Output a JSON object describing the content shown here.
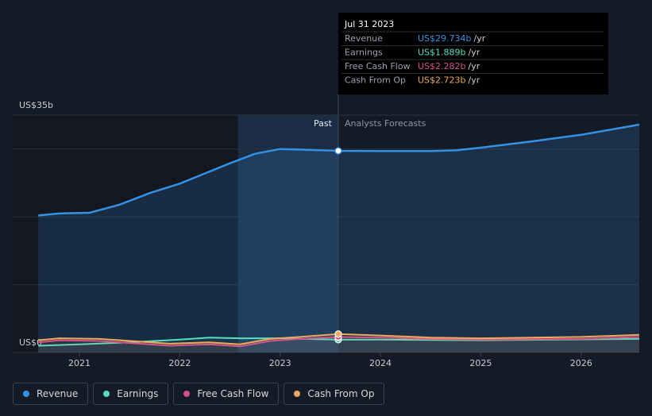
{
  "chart_data": {
    "type": "line",
    "y_axis_label_top": "US$35b",
    "ylim": [
      0,
      35
    ],
    "yticks": [
      {
        "value": 0,
        "label": "US$0"
      },
      {
        "value": 35,
        "label": "US$35b"
      }
    ],
    "ygrid": [
      10,
      20,
      30
    ],
    "xlim": [
      2020.335,
      2026.58
    ],
    "xticks": [
      2021,
      2022,
      2023,
      2024,
      2025,
      2026
    ],
    "forecast_start": 2023.58,
    "annotations": {
      "past": "Past",
      "forecast": "Analysts Forecasts"
    },
    "series": [
      {
        "name": "Revenue",
        "color": "#3591e3",
        "x": [
          2020.59,
          2020.8,
          2021.1,
          2021.4,
          2021.7,
          2022.0,
          2022.25,
          2022.5,
          2022.75,
          2023.0,
          2023.25,
          2023.58,
          2024.0,
          2024.5,
          2024.75,
          2025.0,
          2025.5,
          2026.0,
          2026.58
        ],
        "values": [
          20.2,
          20.5,
          20.6,
          21.8,
          23.5,
          24.9,
          26.4,
          27.9,
          29.3,
          30.0,
          29.9,
          29.734,
          29.7,
          29.7,
          29.8,
          30.2,
          31.1,
          32.1,
          33.6
        ]
      },
      {
        "name": "Earnings",
        "color": "#56e0c0",
        "x": [
          2020.59,
          2021.0,
          2021.5,
          2022.0,
          2022.3,
          2022.6,
          2023.0,
          2023.58,
          2024.0,
          2025.0,
          2026.58
        ],
        "values": [
          1.0,
          1.2,
          1.5,
          1.9,
          2.2,
          2.1,
          2.1,
          1.889,
          1.9,
          1.8,
          2.0
        ]
      },
      {
        "name": "Free Cash Flow",
        "color": "#d4518a",
        "x": [
          2020.59,
          2020.8,
          2021.2,
          2021.6,
          2021.9,
          2022.3,
          2022.6,
          2022.9,
          2023.2,
          2023.58,
          2024.0,
          2024.5,
          2025.0,
          2026.0,
          2026.58
        ],
        "values": [
          1.5,
          1.8,
          1.7,
          1.3,
          1.0,
          1.2,
          0.9,
          1.7,
          2.0,
          2.282,
          2.2,
          2.0,
          1.9,
          2.0,
          2.3
        ]
      },
      {
        "name": "Cash From Op",
        "color": "#eeaa5c",
        "x": [
          2020.59,
          2020.8,
          2021.2,
          2021.6,
          2021.9,
          2022.3,
          2022.6,
          2022.9,
          2023.2,
          2023.58,
          2024.0,
          2024.5,
          2025.0,
          2026.0,
          2026.58
        ],
        "values": [
          1.8,
          2.1,
          2.0,
          1.6,
          1.3,
          1.5,
          1.2,
          2.0,
          2.3,
          2.723,
          2.5,
          2.2,
          2.1,
          2.3,
          2.6
        ]
      }
    ],
    "tooltip": {
      "date": "Jul 31 2023",
      "unit": "/yr",
      "value_labels": [
        "US$29.734b",
        "US$1.889b",
        "US$2.282b",
        "US$2.723b"
      ]
    }
  }
}
